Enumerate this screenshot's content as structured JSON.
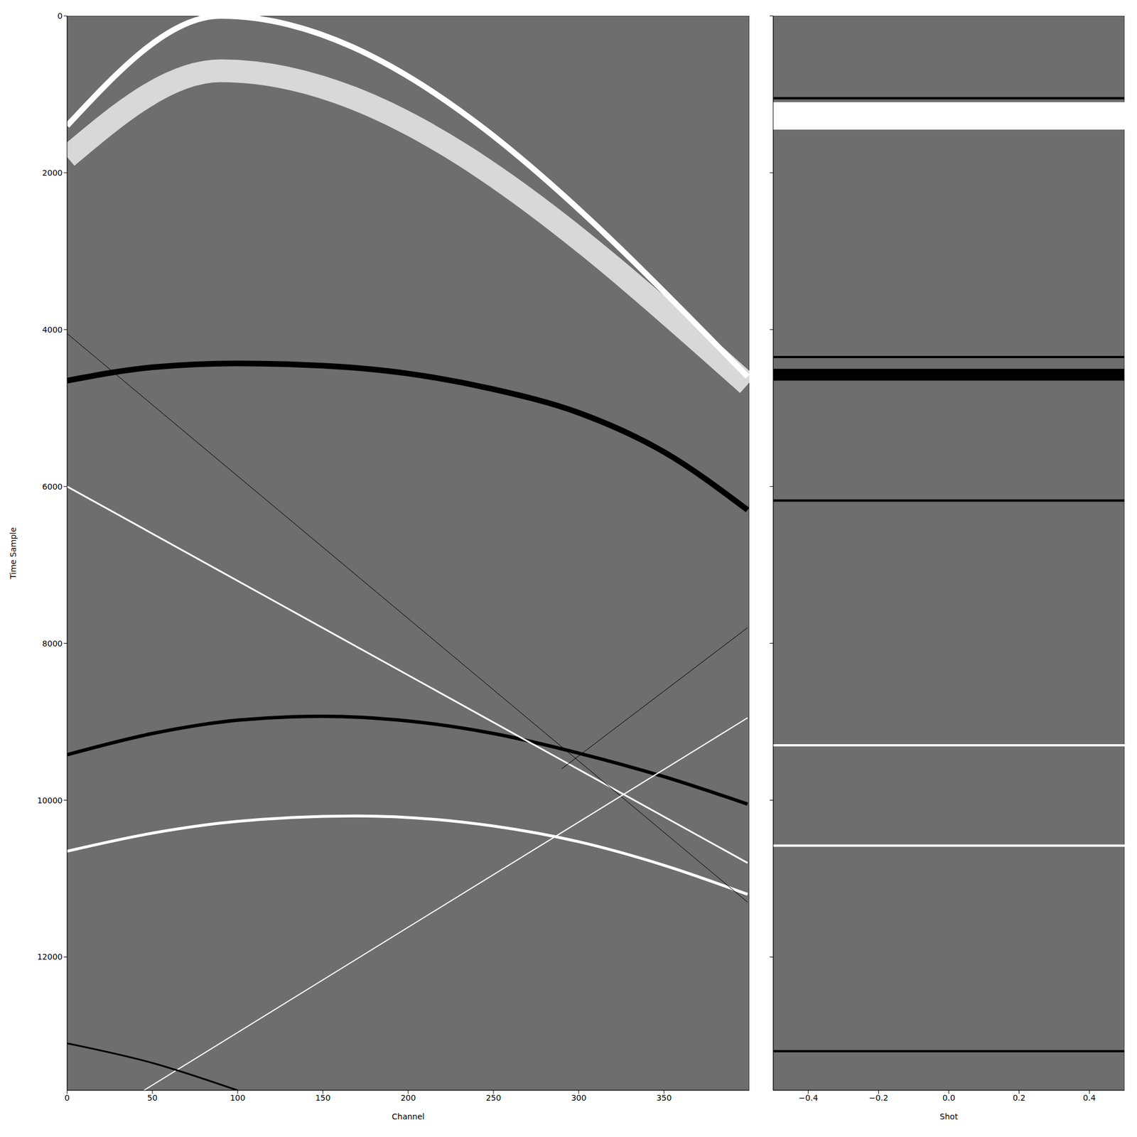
{
  "chart_data": [
    {
      "type": "line",
      "xlabel": "Channel",
      "ylabel": "Time Sample",
      "xlim": [
        0,
        400
      ],
      "ylim": [
        0,
        13700
      ],
      "xticks": [
        0,
        50,
        100,
        150,
        200,
        250,
        300,
        350
      ],
      "yticks": [
        0,
        2000,
        4000,
        6000,
        8000,
        10000,
        12000
      ],
      "tick_labels": true,
      "series": [
        {
          "color": "#d8d8d8",
          "x": [
            0,
            90,
            399
          ],
          "values": [
            1800,
            700,
            4700
          ]
        },
        {
          "color": "#ffffff",
          "x": [
            0,
            90,
            399
          ],
          "values": [
            1400,
            0,
            4600
          ]
        },
        {
          "color": "#000000",
          "x": [
            0,
            50,
            100,
            150,
            200,
            250,
            300,
            350,
            399
          ],
          "values": [
            4650,
            4480,
            4430,
            4460,
            4560,
            4760,
            5060,
            5560,
            6300
          ]
        },
        {
          "color": "#000000",
          "x": [
            0,
            50,
            100,
            150,
            200,
            250,
            300,
            350,
            399
          ],
          "values": [
            9420,
            9150,
            8980,
            8930,
            8990,
            9150,
            9400,
            9700,
            10050
          ]
        },
        {
          "color": "#ffffff",
          "x": [
            0,
            50,
            100,
            170,
            250,
            300,
            350,
            399
          ],
          "values": [
            10650,
            10420,
            10270,
            10200,
            10330,
            10530,
            10830,
            11200
          ]
        },
        {
          "color": "#ffffff",
          "x": [
            0,
            399
          ],
          "values": [
            6000,
            10800
          ]
        },
        {
          "color": "#000000",
          "x": [
            0,
            399
          ],
          "values": [
            4050,
            11300
          ]
        },
        {
          "color": "#ffffff",
          "x": [
            45,
            399
          ],
          "values": [
            13700,
            8950
          ]
        },
        {
          "color": "#000000",
          "x": [
            290,
            399
          ],
          "values": [
            9600,
            7800
          ]
        },
        {
          "color": "#000000",
          "x": [
            0,
            50,
            100
          ],
          "values": [
            13100,
            13350,
            13700
          ]
        }
      ]
    },
    {
      "type": "line",
      "xlabel": "Shot",
      "xlim": [
        -0.5,
        0.5
      ],
      "ylim": [
        0,
        13700
      ],
      "xticks": [
        {
          "value": -0.4,
          "label": "−0.4"
        },
        {
          "value": -0.2,
          "label": "−0.2"
        },
        {
          "value": 0,
          "label": "0.0"
        },
        0.2,
        0.4
      ],
      "yticks": [
        0,
        2000,
        4000,
        6000,
        8000,
        10000,
        12000
      ],
      "tick_labels": "x",
      "bands": [
        {
          "y1": 1100,
          "y2": 1450,
          "color": "#ffffff"
        },
        {
          "y1": 4500,
          "y2": 4650,
          "color": "#000000"
        }
      ],
      "series": [
        {
          "color": "#000000",
          "x": [
            -0.5,
            0.5
          ],
          "values": [
            1050,
            1050
          ]
        },
        {
          "color": "#000000",
          "x": [
            -0.5,
            0.5
          ],
          "values": [
            4350,
            4350
          ]
        },
        {
          "color": "#000000",
          "x": [
            -0.5,
            0.5
          ],
          "values": [
            6180,
            6180
          ]
        },
        {
          "color": "#ffffff",
          "x": [
            -0.5,
            0.5
          ],
          "values": [
            9300,
            9300
          ]
        },
        {
          "color": "#ffffff",
          "x": [
            -0.5,
            0.5
          ],
          "values": [
            10580,
            10580
          ]
        },
        {
          "color": "#000000",
          "x": [
            -0.5,
            0.5
          ],
          "values": [
            13200,
            13200
          ]
        }
      ]
    }
  ]
}
